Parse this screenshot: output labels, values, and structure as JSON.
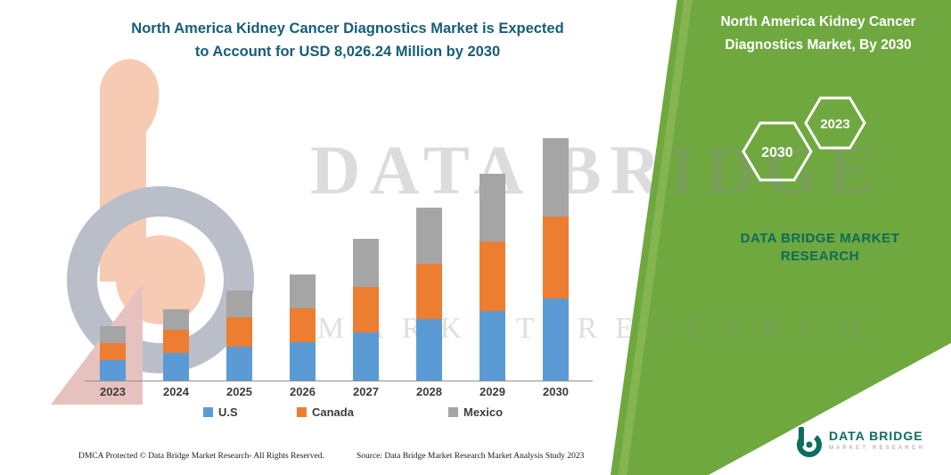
{
  "colors": {
    "green": "#6fa83f",
    "brand_teal": "#0d6b58",
    "headline_blue": "#175d77"
  },
  "header": {
    "title": "North America Kidney Cancer Diagnostics Market is Expected\nto Account for USD 8,026.24 Million by 2030"
  },
  "side_panel": {
    "title": "North America Kidney Cancer\nDiagnostics Market, By 2030",
    "hexagons": [
      {
        "label": "2030"
      },
      {
        "label": "2023"
      }
    ],
    "brand_text": "DATA BRIDGE MARKET\nRESEARCH"
  },
  "watermark": {
    "line1": "DATA BRIDGE",
    "line2": "MARKET RESEARCH"
  },
  "chart_data": {
    "type": "bar",
    "subtype": "stacked",
    "title": "North America Kidney Cancer Diagnostics Market is Expected to Account for USD 8,026.24 Million by 2030",
    "unit": "USD Million",
    "categories": [
      "2023",
      "2024",
      "2025",
      "2026",
      "2027",
      "2028",
      "2029",
      "2030"
    ],
    "series": [
      {
        "name": "U.S",
        "color": "#5b9bd5",
        "values": [
          680,
          915,
          1120,
          1270,
          1595,
          2035,
          2310,
          2720
        ]
      },
      {
        "name": "Canada",
        "color": "#ed7d31",
        "values": [
          560,
          765,
          975,
          1120,
          1505,
          1830,
          2300,
          2710
        ]
      },
      {
        "name": "Mexico",
        "color": "#a5a5a5",
        "values": [
          560,
          680,
          885,
          1120,
          1590,
          1860,
          2235,
          2596.24
        ]
      }
    ],
    "xlabel": "",
    "ylabel": "",
    "ylim": [
      0,
      8500
    ],
    "grid": false,
    "legend_position": "bottom"
  },
  "footer": {
    "dmca": "DMCA Protected © Data Bridge Market Research-  All Rights Reserved.",
    "source": "Source: Data Bridge Market Research  Market Analysis Study 2023"
  },
  "logo": {
    "name": "DATA BRIDGE",
    "tagline": "MARKET RESEARCH"
  }
}
